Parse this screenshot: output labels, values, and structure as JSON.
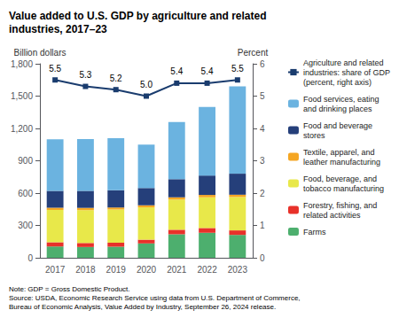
{
  "chart_data": {
    "type": "bar",
    "title": "Value added to U.S. GDP by agriculture and related\nindustries, 2017–23",
    "categories": [
      "2017",
      "2018",
      "2019",
      "2020",
      "2021",
      "2022",
      "2023"
    ],
    "stacked": true,
    "series": [
      {
        "name": "Farms",
        "color": "#4daf6e",
        "values": [
          105,
          100,
          103,
          133,
          218,
          232,
          212
        ]
      },
      {
        "name": "Forestry, fishing, and\nrelated activities",
        "color": "#e8312a",
        "values": [
          38,
          37,
          36,
          35,
          42,
          44,
          42
        ]
      },
      {
        "name": "Food, beverage, and\ntobacco manufacturing",
        "color": "#e8e84a",
        "values": [
          300,
          305,
          308,
          300,
          280,
          285,
          310
        ]
      },
      {
        "name": "Textile, apparel, and\nleather manufacturing",
        "color": "#f5a623",
        "values": [
          22,
          21,
          20,
          19,
          21,
          22,
          21
        ]
      },
      {
        "name": "Food and beverage\nstores",
        "color": "#253f7a",
        "values": [
          155,
          158,
          160,
          160,
          168,
          180,
          195
        ]
      },
      {
        "name": "Food services, eating\nand drinking places",
        "color": "#6bb3e0",
        "values": [
          480,
          480,
          483,
          403,
          531,
          637,
          810
        ]
      },
      {
        "name": "Agriculture and related\nindustries: share of GDP\n(percent, right axis)",
        "type": "line",
        "axis": "y2",
        "color": "#1a3c6e",
        "marker": "square",
        "data_labels": true,
        "values": [
          5.5,
          5.3,
          5.2,
          5.0,
          5.4,
          5.4,
          5.5
        ],
        "value_labels": [
          "5.5",
          "5.3",
          "5.2",
          "5.0",
          "5.4",
          "5.4",
          "5.5"
        ]
      }
    ],
    "ylabel": "Billion dollars",
    "y2label": "Percent",
    "ylim": [
      0,
      1800
    ],
    "yticks": [
      0,
      300,
      600,
      900,
      {
        "value": 1200,
        "label": "1,200"
      },
      {
        "value": 1500,
        "label": "1,500"
      },
      {
        "value": 1800,
        "label": "1,800"
      }
    ],
    "y2lim": [
      0,
      6
    ],
    "y2ticks": [
      0,
      1,
      2,
      3,
      4,
      5,
      6
    ],
    "grid": false,
    "legend": "right",
    "note": "Note: GDP = Gross Domestic Product.\nSource: USDA, Economic Research Service using data from U.S. Department of Commerce,\nBureau of Economic Analysis, Value Added by Industry, September 26, 2024 release."
  }
}
